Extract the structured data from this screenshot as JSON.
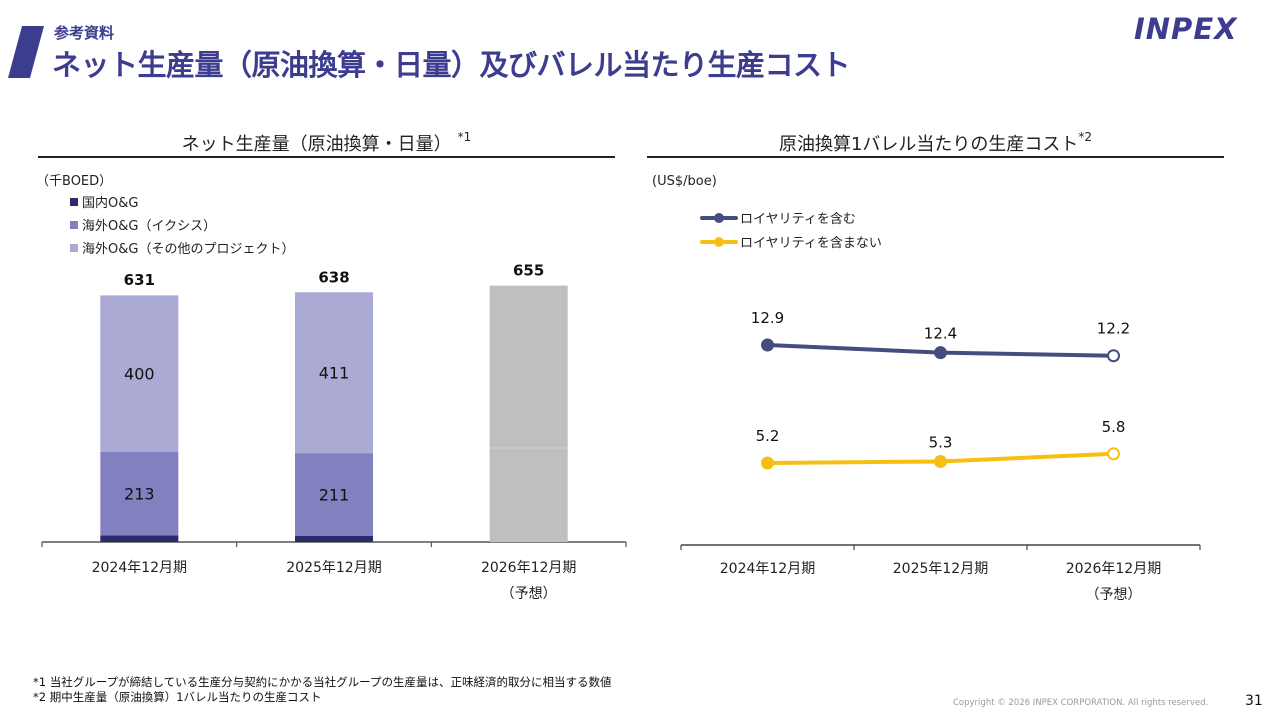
{
  "header": {
    "subtitle": "参考資料",
    "title": "ネット生産量（原油換算・日量）及びバレル当たり生産コスト",
    "logo_text": "INPEX",
    "accent_color": "#3d3d8f"
  },
  "left_panel": {
    "title": "ネット生産量（原油換算・日量）",
    "title_note": "*1",
    "unit": "（千BOED）",
    "legend": [
      {
        "label": "国内O&G",
        "color": "#2e2b6b"
      },
      {
        "label": "海外O&G（イクシス）",
        "color": "#8380c0"
      },
      {
        "label": "海外O&G（その他のプロジェクト）",
        "color": "#aaaad4"
      }
    ]
  },
  "right_panel": {
    "title": "原油換算1バレル当たりの生産コスト",
    "title_note": "*2",
    "unit": "(US$/boe)",
    "legend": [
      {
        "label": "ロイヤリティを含む",
        "color": "#454c7e"
      },
      {
        "label": "ロイヤリティを含まない",
        "color": "#f5c013"
      }
    ]
  },
  "chart_data": [
    {
      "type": "bar",
      "stacked": true,
      "title": "ネット生産量（原油換算・日量）*1",
      "ylabel": "（千BOED）",
      "categories": [
        "2024年12月期",
        "2025年12月期",
        "2026年12月期"
      ],
      "category_sublabels": [
        "",
        "",
        "（予想）"
      ],
      "series": [
        {
          "name": "国内O&G",
          "values": [
            17,
            16,
            null
          ],
          "color": "#2e2b6b"
        },
        {
          "name": "海外O&G（イクシス）",
          "values": [
            213,
            211,
            null
          ],
          "color": "#8380c0"
        },
        {
          "name": "海外O&G（その他のプロジェクト）",
          "values": [
            400,
            411,
            null
          ],
          "color": "#aaaad4"
        }
      ],
      "totals": [
        631,
        638,
        655
      ],
      "forecast_total_color": "#bfbfbf",
      "forecast_split_value": 240,
      "ylim": [
        0,
        700
      ],
      "grid": false,
      "legend_position": "top-left"
    },
    {
      "type": "line",
      "title": "原油換算1バレル当たりの生産コスト*2",
      "ylabel": "(US$/boe)",
      "categories": [
        "2024年12月期",
        "2025年12月期",
        "2026年12月期"
      ],
      "category_sublabels": [
        "",
        "",
        "（予想）"
      ],
      "series": [
        {
          "name": "ロイヤリティを含む",
          "values": [
            12.9,
            12.4,
            12.2
          ],
          "color": "#454c7e",
          "forecast_hollow_last": true
        },
        {
          "name": "ロイヤリティを含まない",
          "values": [
            5.2,
            5.3,
            5.8
          ],
          "color": "#f5c013",
          "forecast_hollow_last": true
        }
      ],
      "ylim": [
        0,
        16
      ],
      "grid": false,
      "legend_position": "top-left"
    }
  ],
  "footnotes": [
    "*1 当社グループが締結している生産分与契約にかかる当社グループの生産量は、正味経済的取分に相当する数値",
    "*2 期中生産量（原油換算）1バレル当たりの生産コスト"
  ],
  "footer": {
    "copyright": "Copyright © 2026 INPEX CORPORATION. All rights reserved.",
    "page_number": "31"
  }
}
